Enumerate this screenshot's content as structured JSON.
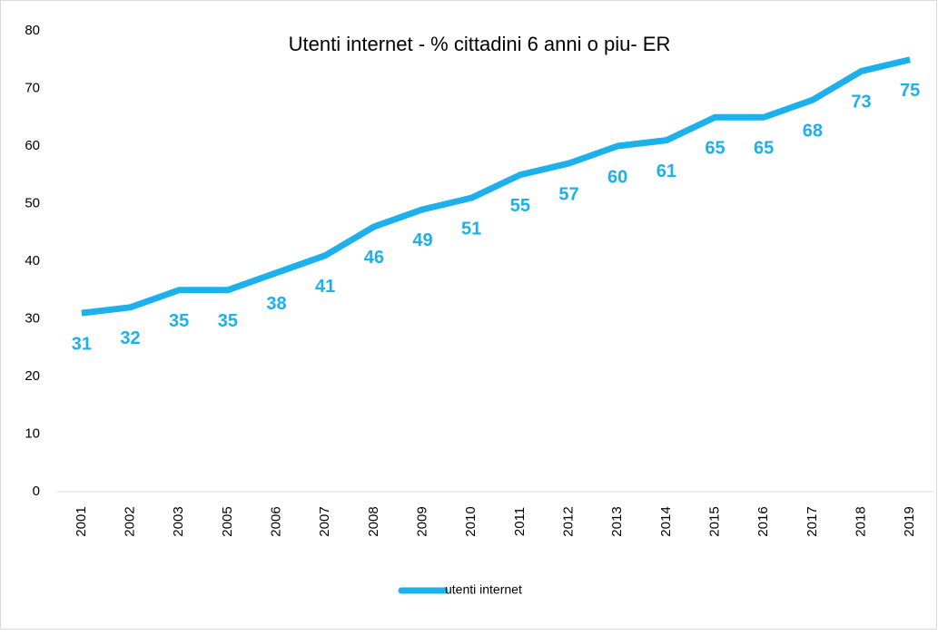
{
  "chart_data": {
    "type": "line",
    "title": "Utenti internet - % cittadini 6 anni o piu- ER",
    "categories": [
      "2001",
      "2002",
      "2003",
      "2005",
      "2006",
      "2007",
      "2008",
      "2009",
      "2010",
      "2011",
      "2012",
      "2013",
      "2014",
      "2015",
      "2016",
      "2017",
      "2018",
      "2019"
    ],
    "series": [
      {
        "name": "utenti internet",
        "color": "#1cb0ec",
        "values": [
          31,
          32,
          35,
          35,
          38,
          41,
          46,
          49,
          51,
          55,
          57,
          60,
          61,
          65,
          65,
          68,
          73,
          75
        ]
      }
    ],
    "ylim": [
      0,
      80
    ],
    "yticks": [
      0,
      10,
      20,
      30,
      40,
      50,
      60,
      70,
      80
    ],
    "grid": false,
    "legend": "bottom"
  }
}
